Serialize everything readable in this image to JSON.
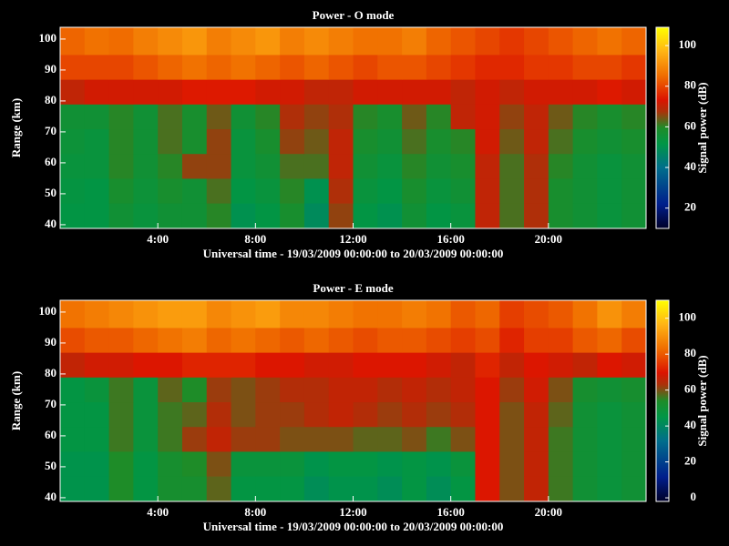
{
  "chart_data": [
    {
      "type": "heatmap",
      "title": "Power - O mode",
      "xlabel": "Universal time - 19/03/2009 00:00:00 to 20/03/2009 00:00:00",
      "ylabel": "Range (km)",
      "colorbar_label": "Signal power (dB)",
      "x": [
        0,
        1,
        2,
        3,
        4,
        5,
        6,
        7,
        8,
        9,
        10,
        11,
        12,
        13,
        14,
        15,
        16,
        17,
        18,
        19,
        20,
        21,
        22,
        23,
        24
      ],
      "y": [
        38.8,
        47,
        55,
        63,
        71,
        79,
        87,
        95,
        103.8
      ],
      "z": [
        [
          52,
          52,
          56,
          54,
          56,
          56,
          60,
          50,
          52,
          58,
          48,
          66,
          52,
          50,
          56,
          52,
          54,
          70,
          62,
          68,
          58,
          56,
          54,
          56
        ],
        [
          53,
          52,
          58,
          55,
          58,
          56,
          62,
          52,
          54,
          60,
          50,
          68,
          54,
          52,
          58,
          54,
          56,
          70,
          62,
          68,
          58,
          56,
          54,
          56
        ],
        [
          54,
          54,
          60,
          56,
          60,
          66,
          66,
          54,
          56,
          62,
          62,
          70,
          56,
          54,
          60,
          56,
          58,
          70,
          62,
          68,
          60,
          56,
          54,
          56
        ],
        [
          55,
          54,
          60,
          56,
          62,
          58,
          66,
          54,
          58,
          66,
          64,
          70,
          58,
          56,
          62,
          58,
          60,
          72,
          64,
          70,
          62,
          58,
          56,
          58
        ],
        [
          56,
          56,
          60,
          56,
          62,
          58,
          64,
          56,
          60,
          68,
          66,
          68,
          60,
          58,
          64,
          60,
          70,
          72,
          66,
          70,
          64,
          60,
          58,
          60
        ],
        [
          70,
          72,
          72,
          72,
          72,
          74,
          74,
          74,
          72,
          72,
          70,
          70,
          72,
          72,
          72,
          72,
          70,
          72,
          70,
          72,
          72,
          72,
          74,
          72
        ],
        [
          80,
          80,
          80,
          82,
          84,
          86,
          84,
          86,
          84,
          82,
          84,
          82,
          80,
          82,
          82,
          80,
          78,
          76,
          76,
          78,
          78,
          80,
          80,
          78
        ],
        [
          84,
          86,
          85,
          88,
          90,
          92,
          88,
          90,
          92,
          88,
          90,
          88,
          86,
          86,
          88,
          84,
          82,
          80,
          78,
          80,
          82,
          84,
          86,
          84
        ]
      ],
      "xlim": [
        0,
        24
      ],
      "ylim": [
        38.8,
        103.8
      ],
      "xticks": [
        {
          "value": 4,
          "label": "4:00"
        },
        {
          "value": 8,
          "label": "8:00"
        },
        {
          "value": 12,
          "label": "12:00"
        },
        {
          "value": 16,
          "label": "16:00"
        },
        {
          "value": 20,
          "label": "20:00"
        }
      ],
      "yticks": [
        40,
        50,
        60,
        70,
        80,
        90,
        100
      ],
      "zlim": [
        10,
        109
      ],
      "zticks": [
        20,
        40,
        60,
        80,
        100
      ]
    },
    {
      "type": "heatmap",
      "title": "Power - E mode",
      "xlabel": "Universal time - 19/03/2009 00:00:00 to 20/03/2009 00:00:00",
      "ylabel": "Range (km)",
      "colorbar_label": "Signal power (dB)",
      "x": [
        0,
        1,
        2,
        3,
        4,
        5,
        6,
        7,
        8,
        9,
        10,
        11,
        12,
        13,
        14,
        15,
        16,
        17,
        18,
        19,
        20,
        21,
        22,
        23,
        24
      ],
      "y": [
        38.8,
        47,
        55,
        63,
        71,
        79,
        87,
        95,
        103.8
      ],
      "z": [
        [
          44,
          44,
          54,
          46,
          52,
          52,
          58,
          46,
          46,
          46,
          42,
          44,
          44,
          42,
          46,
          42,
          46,
          70,
          60,
          66,
          56,
          50,
          48,
          50
        ],
        [
          44,
          44,
          54,
          46,
          52,
          54,
          60,
          48,
          48,
          48,
          44,
          46,
          46,
          44,
          46,
          44,
          48,
          70,
          60,
          66,
          56,
          50,
          48,
          50
        ],
        [
          46,
          46,
          56,
          48,
          56,
          62,
          66,
          62,
          62,
          60,
          60,
          60,
          58,
          58,
          60,
          56,
          60,
          70,
          60,
          66,
          56,
          50,
          48,
          50
        ],
        [
          46,
          46,
          56,
          48,
          56,
          58,
          64,
          60,
          62,
          62,
          64,
          66,
          64,
          62,
          64,
          62,
          64,
          70,
          60,
          66,
          58,
          50,
          48,
          50
        ],
        [
          46,
          48,
          56,
          48,
          58,
          54,
          62,
          60,
          62,
          64,
          64,
          66,
          66,
          64,
          66,
          64,
          66,
          70,
          62,
          68,
          60,
          52,
          50,
          52
        ],
        [
          66,
          68,
          68,
          70,
          70,
          72,
          72,
          72,
          70,
          70,
          68,
          68,
          70,
          70,
          70,
          68,
          66,
          72,
          66,
          70,
          68,
          66,
          70,
          68
        ],
        [
          78,
          80,
          80,
          82,
          84,
          86,
          82,
          84,
          82,
          80,
          82,
          80,
          78,
          80,
          80,
          78,
          76,
          78,
          72,
          76,
          76,
          80,
          82,
          78
        ],
        [
          84,
          86,
          88,
          90,
          92,
          92,
          88,
          90,
          92,
          88,
          88,
          86,
          84,
          84,
          86,
          84,
          80,
          82,
          76,
          78,
          80,
          84,
          90,
          86
        ]
      ],
      "xlim": [
        0,
        24
      ],
      "ylim": [
        38.8,
        103.8
      ],
      "xticks": [
        {
          "value": 4,
          "label": "4:00"
        },
        {
          "value": 8,
          "label": "8:00"
        },
        {
          "value": 12,
          "label": "12:00"
        },
        {
          "value": 16,
          "label": "16:00"
        },
        {
          "value": 20,
          "label": "20:00"
        }
      ],
      "yticks": [
        40,
        50,
        60,
        70,
        80,
        90,
        100
      ],
      "zlim": [
        -2,
        110
      ],
      "zticks": [
        0,
        20,
        40,
        60,
        80,
        100
      ]
    }
  ]
}
